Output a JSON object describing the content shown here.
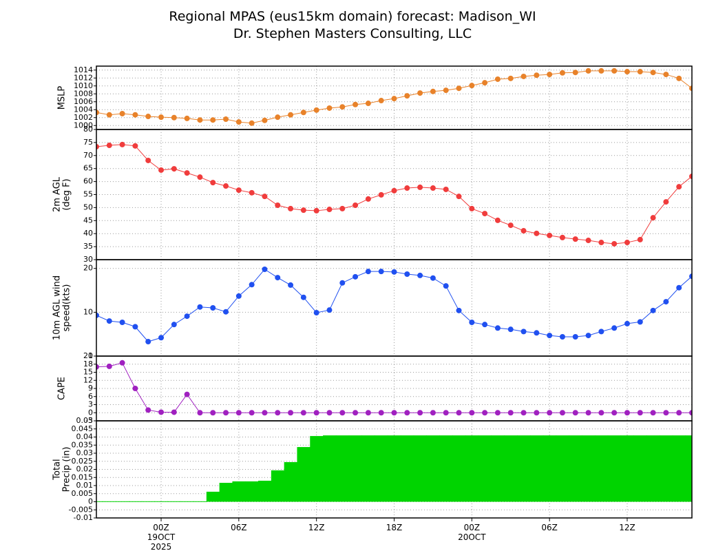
{
  "chart_data": [
    {
      "type": "line",
      "title": "Regional MPAS (eus15km domain) forecast: Madison_WI",
      "subtitle": "Dr. Stephen Masters Consulting, LLC",
      "ylabel": [
        "MSLP"
      ],
      "color": "#e8822a",
      "x": [
        "2025-10-18T19",
        "2025-10-18T20",
        "2025-10-18T21",
        "2025-10-18T22",
        "2025-10-18T23",
        "2025-10-19T00",
        "2025-10-19T01",
        "2025-10-19T02",
        "2025-10-19T03",
        "2025-10-19T04",
        "2025-10-19T05",
        "2025-10-19T06",
        "2025-10-19T07",
        "2025-10-19T08",
        "2025-10-19T09",
        "2025-10-19T10",
        "2025-10-19T11",
        "2025-10-19T12",
        "2025-10-19T13",
        "2025-10-19T14",
        "2025-10-19T15",
        "2025-10-19T16",
        "2025-10-19T17",
        "2025-10-19T18",
        "2025-10-19T19",
        "2025-10-19T20",
        "2025-10-19T21",
        "2025-10-19T22",
        "2025-10-19T23",
        "2025-10-20T00",
        "2025-10-20T01",
        "2025-10-20T02",
        "2025-10-20T03",
        "2025-10-20T04",
        "2025-10-20T05",
        "2025-10-20T06",
        "2025-10-20T07",
        "2025-10-20T08",
        "2025-10-20T09",
        "2025-10-20T10",
        "2025-10-20T11",
        "2025-10-20T12",
        "2025-10-20T13",
        "2025-10-20T14",
        "2025-10-20T15",
        "2025-10-20T16",
        "2025-10-20T17"
      ],
      "values": [
        1003.3,
        1002.7,
        1003,
        1002.7,
        1002.3,
        1002.1,
        1002,
        1001.8,
        1001.4,
        1001.4,
        1001.6,
        1000.9,
        1000.6,
        1001.3,
        1002.1,
        1002.7,
        1003.3,
        1003.9,
        1004.4,
        1004.7,
        1005.3,
        1005.6,
        1006.3,
        1006.8,
        1007.5,
        1008.2,
        1008.6,
        1008.9,
        1009.4,
        1010.1,
        1010.8,
        1011.7,
        1011.9,
        1012.4,
        1012.7,
        1012.9,
        1013.3,
        1013.4,
        1013.8,
        1013.8,
        1013.8,
        1013.6,
        1013.6,
        1013.4,
        1012.9,
        1011.9,
        1009.4
      ],
      "xlim": [
        "2025-10-18T19",
        "2025-10-20T17"
      ],
      "xticks": [
        "2025-10-19T00",
        "2025-10-19T06",
        "2025-10-19T12",
        "2025-10-19T18",
        "2025-10-20T00",
        "2025-10-20T06",
        "2025-10-20T12"
      ],
      "ylim": [
        999,
        1015
      ],
      "yticks": [
        1000,
        1002,
        1004,
        1006,
        1008,
        1010,
        1012,
        1014
      ],
      "grid": true
    },
    {
      "type": "line",
      "ylabel": [
        "2m AGL",
        "(deg F)"
      ],
      "color": "#f03c3c",
      "x": [
        "2025-10-18T19",
        "2025-10-18T20",
        "2025-10-18T21",
        "2025-10-18T22",
        "2025-10-18T23",
        "2025-10-19T00",
        "2025-10-19T01",
        "2025-10-19T02",
        "2025-10-19T03",
        "2025-10-19T04",
        "2025-10-19T05",
        "2025-10-19T06",
        "2025-10-19T07",
        "2025-10-19T08",
        "2025-10-19T09",
        "2025-10-19T10",
        "2025-10-19T11",
        "2025-10-19T12",
        "2025-10-19T13",
        "2025-10-19T14",
        "2025-10-19T15",
        "2025-10-19T16",
        "2025-10-19T17",
        "2025-10-19T18",
        "2025-10-19T19",
        "2025-10-19T20",
        "2025-10-19T21",
        "2025-10-19T22",
        "2025-10-19T23",
        "2025-10-20T00",
        "2025-10-20T01",
        "2025-10-20T02",
        "2025-10-20T03",
        "2025-10-20T04",
        "2025-10-20T05",
        "2025-10-20T06",
        "2025-10-20T07",
        "2025-10-20T08",
        "2025-10-20T09",
        "2025-10-20T10",
        "2025-10-20T11",
        "2025-10-20T12",
        "2025-10-20T13",
        "2025-10-20T14",
        "2025-10-20T15",
        "2025-10-20T16",
        "2025-10-20T17"
      ],
      "values": [
        73.4,
        73.9,
        74.2,
        73.7,
        68.1,
        64.4,
        64.9,
        63.3,
        61.7,
        59.6,
        58.3,
        56.7,
        55.7,
        54.3,
        50.9,
        49.6,
        49,
        48.8,
        49.3,
        49.6,
        50.9,
        53.3,
        54.9,
        56.5,
        57.5,
        57.8,
        57.5,
        57,
        54.3,
        49.6,
        47.7,
        45.1,
        43.2,
        41.1,
        40.1,
        39.3,
        38.5,
        37.9,
        37.4,
        36.6,
        36.1,
        36.6,
        37.7,
        46.1,
        52.2,
        58,
        62
      ],
      "xlim": [
        "2025-10-18T19",
        "2025-10-20T17"
      ],
      "xticks": [
        "2025-10-19T00",
        "2025-10-19T06",
        "2025-10-19T12",
        "2025-10-19T18",
        "2025-10-20T00",
        "2025-10-20T06",
        "2025-10-20T12"
      ],
      "ylim": [
        30,
        80
      ],
      "yticks": [
        30,
        35,
        40,
        45,
        50,
        55,
        60,
        65,
        70,
        75,
        80
      ],
      "grid": true
    },
    {
      "type": "line",
      "ylabel": [
        "10m AGL wind",
        "speed(kts)"
      ],
      "color": "#2050f0",
      "x": [
        "2025-10-18T19",
        "2025-10-18T20",
        "2025-10-18T21",
        "2025-10-18T22",
        "2025-10-18T23",
        "2025-10-19T00",
        "2025-10-19T01",
        "2025-10-19T02",
        "2025-10-19T03",
        "2025-10-19T04",
        "2025-10-19T05",
        "2025-10-19T06",
        "2025-10-19T07",
        "2025-10-19T08",
        "2025-10-19T09",
        "2025-10-19T10",
        "2025-10-19T11",
        "2025-10-19T12",
        "2025-10-19T13",
        "2025-10-19T14",
        "2025-10-19T15",
        "2025-10-19T16",
        "2025-10-19T17",
        "2025-10-19T18",
        "2025-10-19T19",
        "2025-10-19T20",
        "2025-10-19T21",
        "2025-10-19T22",
        "2025-10-19T23",
        "2025-10-20T00",
        "2025-10-20T01",
        "2025-10-20T02",
        "2025-10-20T03",
        "2025-10-20T04",
        "2025-10-20T05",
        "2025-10-20T06",
        "2025-10-20T07",
        "2025-10-20T08",
        "2025-10-20T09",
        "2025-10-20T10",
        "2025-10-20T11",
        "2025-10-20T12",
        "2025-10-20T13",
        "2025-10-20T14",
        "2025-10-20T15",
        "2025-10-20T16",
        "2025-10-20T17"
      ],
      "values": [
        9.3,
        8,
        7.7,
        6.7,
        3.3,
        4.2,
        7.2,
        9.1,
        11.2,
        11,
        10.1,
        13.7,
        16.3,
        19.8,
        17.9,
        16.2,
        13.4,
        9.9,
        10.5,
        16.7,
        18.1,
        19.3,
        19.3,
        19.2,
        18.7,
        18.4,
        17.8,
        16,
        10.4,
        7.7,
        7.2,
        6.4,
        6.1,
        5.6,
        5.3,
        4.7,
        4.4,
        4.4,
        4.7,
        5.6,
        6.4,
        7.4,
        7.8,
        10.4,
        12.4,
        15.6,
        18.2
      ],
      "xlim": [
        "2025-10-18T19",
        "2025-10-20T17"
      ],
      "xticks": [
        "2025-10-19T00",
        "2025-10-19T06",
        "2025-10-19T12",
        "2025-10-19T18",
        "2025-10-20T00",
        "2025-10-20T06",
        "2025-10-20T12"
      ],
      "ylim": [
        0,
        22
      ],
      "yticks": [
        0,
        10,
        20
      ],
      "grid": true
    },
    {
      "type": "line",
      "ylabel": [
        "CAPE"
      ],
      "color": "#a020c0",
      "x": [
        "2025-10-18T19",
        "2025-10-18T20",
        "2025-10-18T21",
        "2025-10-18T22",
        "2025-10-18T23",
        "2025-10-19T00",
        "2025-10-19T01",
        "2025-10-19T02",
        "2025-10-19T03",
        "2025-10-19T04",
        "2025-10-19T05",
        "2025-10-19T06",
        "2025-10-19T07",
        "2025-10-19T08",
        "2025-10-19T09",
        "2025-10-19T10",
        "2025-10-19T11",
        "2025-10-19T12",
        "2025-10-19T13",
        "2025-10-19T14",
        "2025-10-19T15",
        "2025-10-19T16",
        "2025-10-19T17",
        "2025-10-19T18",
        "2025-10-19T19",
        "2025-10-19T20",
        "2025-10-19T21",
        "2025-10-19T22",
        "2025-10-19T23",
        "2025-10-20T00",
        "2025-10-20T01",
        "2025-10-20T02",
        "2025-10-20T03",
        "2025-10-20T04",
        "2025-10-20T05",
        "2025-10-20T06",
        "2025-10-20T07",
        "2025-10-20T08",
        "2025-10-20T09",
        "2025-10-20T10",
        "2025-10-20T11",
        "2025-10-20T12",
        "2025-10-20T13",
        "2025-10-20T14",
        "2025-10-20T15",
        "2025-10-20T16",
        "2025-10-20T17"
      ],
      "values": [
        17,
        17.2,
        18.5,
        9,
        1,
        0.2,
        0.2,
        6.8,
        0,
        0,
        0,
        0,
        0,
        0,
        0,
        0,
        0,
        0,
        0,
        0,
        0,
        0,
        0,
        0,
        0,
        0,
        0,
        0,
        0,
        0,
        0,
        0,
        0,
        0,
        0,
        0,
        0,
        0,
        0,
        0,
        0,
        0,
        0,
        0,
        0,
        0,
        0
      ],
      "xlim": [
        "2025-10-18T19",
        "2025-10-20T17"
      ],
      "xticks": [
        "2025-10-19T00",
        "2025-10-19T06",
        "2025-10-19T12",
        "2025-10-19T18",
        "2025-10-20T00",
        "2025-10-20T06",
        "2025-10-20T12"
      ],
      "ylim": [
        -3,
        21
      ],
      "yticks": [
        -3,
        0,
        3,
        6,
        9,
        12,
        15,
        18,
        21
      ],
      "grid": true
    },
    {
      "type": "bar",
      "ylabel": [
        "Total",
        "Precip (in)"
      ],
      "color": "#00d400",
      "x": [
        "2025-10-18T19",
        "2025-10-18T20",
        "2025-10-18T21",
        "2025-10-18T22",
        "2025-10-18T23",
        "2025-10-19T00",
        "2025-10-19T01",
        "2025-10-19T02",
        "2025-10-19T03",
        "2025-10-19T04",
        "2025-10-19T05",
        "2025-10-19T06",
        "2025-10-19T07",
        "2025-10-19T08",
        "2025-10-19T09",
        "2025-10-19T10",
        "2025-10-19T11",
        "2025-10-19T12",
        "2025-10-19T13",
        "2025-10-19T14",
        "2025-10-19T15",
        "2025-10-19T16",
        "2025-10-19T17",
        "2025-10-19T18",
        "2025-10-19T19",
        "2025-10-19T20",
        "2025-10-19T21",
        "2025-10-19T22",
        "2025-10-19T23",
        "2025-10-20T00",
        "2025-10-20T01",
        "2025-10-20T02",
        "2025-10-20T03",
        "2025-10-20T04",
        "2025-10-20T05",
        "2025-10-20T06",
        "2025-10-20T07",
        "2025-10-20T08",
        "2025-10-20T09",
        "2025-10-20T10",
        "2025-10-20T11",
        "2025-10-20T12",
        "2025-10-20T13",
        "2025-10-20T14",
        "2025-10-20T15",
        "2025-10-20T16",
        "2025-10-20T17"
      ],
      "values": [
        0.0003,
        0.0003,
        0.0003,
        0.0003,
        0.0003,
        0.0003,
        0.0003,
        0.0003,
        0.0003,
        0.0062,
        0.0117,
        0.0126,
        0.0126,
        0.013,
        0.0194,
        0.0245,
        0.0338,
        0.0406,
        0.041,
        0.041,
        0.041,
        0.041,
        0.041,
        0.041,
        0.041,
        0.041,
        0.041,
        0.041,
        0.041,
        0.041,
        0.041,
        0.041,
        0.041,
        0.041,
        0.041,
        0.041,
        0.041,
        0.041,
        0.041,
        0.041,
        0.041,
        0.041,
        0.041,
        0.041,
        0.041,
        0.041,
        0.041
      ],
      "xlim": [
        "2025-10-18T19",
        "2025-10-20T17"
      ],
      "xticks": [
        {
          "value": "2025-10-19T00",
          "label": "00Z"
        },
        {
          "value": "2025-10-19T06",
          "label": "06Z"
        },
        {
          "value": "2025-10-19T12",
          "label": "12Z"
        },
        {
          "value": "2025-10-19T18",
          "label": "18Z"
        },
        {
          "value": "2025-10-20T00",
          "label": "00Z"
        },
        {
          "value": "2025-10-20T06",
          "label": "06Z"
        },
        {
          "value": "2025-10-20T12",
          "label": "12Z"
        }
      ],
      "date_labels": [
        {
          "value": "2025-10-19T00",
          "lines": [
            "19OCT",
            "2025"
          ]
        },
        {
          "value": "2025-10-20T00",
          "lines": [
            "20OCT"
          ]
        }
      ],
      "ylim": [
        -0.01,
        0.05
      ],
      "yticks": [
        -0.01,
        -0.005,
        0,
        0.005,
        0.01,
        0.015,
        0.02,
        0.025,
        0.03,
        0.035,
        0.04,
        0.045,
        0.05
      ],
      "grid": true
    }
  ]
}
